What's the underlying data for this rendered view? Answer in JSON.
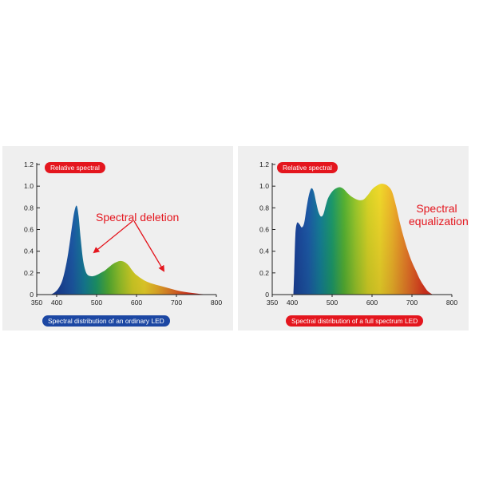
{
  "chart_data": [
    {
      "type": "area",
      "ylabel": "Relative spectral",
      "xlabel": "Spectral distribution of an ordinary LED",
      "annotation": "Spectral deletion",
      "xlim": [
        350,
        800
      ],
      "ylim": [
        0,
        1.2
      ],
      "x_ticks": [
        350,
        400,
        500,
        600,
        700,
        800
      ],
      "y_ticks": [
        0,
        0.2,
        0.4,
        0.6,
        0.8,
        1.0,
        1.2
      ],
      "x": [
        385,
        395,
        405,
        415,
        425,
        432,
        438,
        444,
        450,
        455,
        460,
        466,
        472,
        478,
        485,
        492,
        500,
        510,
        520,
        530,
        540,
        550,
        560,
        570,
        580,
        590,
        600,
        620,
        640,
        660,
        680,
        700,
        720,
        740,
        760,
        780
      ],
      "values": [
        0.0,
        0.02,
        0.06,
        0.14,
        0.3,
        0.46,
        0.62,
        0.76,
        0.82,
        0.72,
        0.52,
        0.32,
        0.22,
        0.18,
        0.17,
        0.17,
        0.18,
        0.2,
        0.22,
        0.25,
        0.28,
        0.3,
        0.31,
        0.3,
        0.27,
        0.22,
        0.18,
        0.13,
        0.1,
        0.08,
        0.06,
        0.04,
        0.025,
        0.015,
        0.006,
        0.0
      ]
    },
    {
      "type": "area",
      "ylabel": "Relative spectral",
      "xlabel": "Spectral distribution of a full spectrum LED",
      "annotation": "Spectral equalization",
      "xlim": [
        350,
        800
      ],
      "ylim": [
        0,
        1.2
      ],
      "x_ticks": [
        350,
        400,
        500,
        600,
        700,
        800
      ],
      "y_ticks": [
        0,
        0.2,
        0.4,
        0.6,
        0.8,
        1.0,
        1.2
      ],
      "x": [
        403,
        405,
        408,
        412,
        418,
        424,
        430,
        436,
        442,
        448,
        454,
        460,
        466,
        472,
        478,
        484,
        490,
        500,
        510,
        520,
        530,
        540,
        550,
        560,
        570,
        580,
        590,
        600,
        610,
        620,
        630,
        640,
        650,
        660,
        670,
        680,
        690,
        700,
        710,
        720,
        730,
        740,
        752
      ],
      "values": [
        0.0,
        0.2,
        0.55,
        0.66,
        0.65,
        0.62,
        0.66,
        0.8,
        0.92,
        0.98,
        0.95,
        0.85,
        0.76,
        0.72,
        0.74,
        0.82,
        0.89,
        0.95,
        0.98,
        0.99,
        0.97,
        0.93,
        0.9,
        0.88,
        0.87,
        0.88,
        0.92,
        0.97,
        1.0,
        1.02,
        1.02,
        1.0,
        0.95,
        0.82,
        0.66,
        0.52,
        0.4,
        0.3,
        0.22,
        0.14,
        0.08,
        0.03,
        0.0
      ]
    }
  ]
}
